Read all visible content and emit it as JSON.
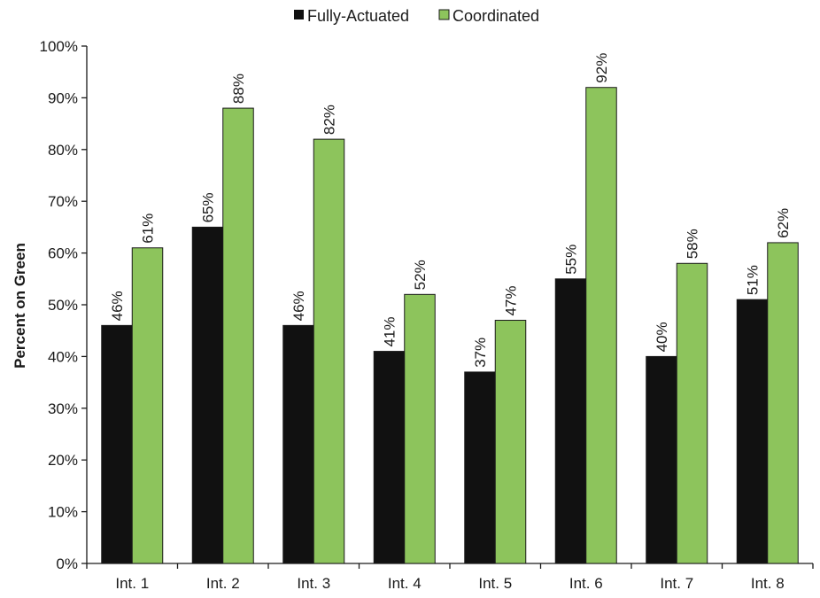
{
  "chart_data": {
    "type": "bar",
    "title": "",
    "xlabel": "",
    "ylabel": "Percent on Green",
    "categories": [
      "Int. 1",
      "Int. 2",
      "Int. 3",
      "Int. 4",
      "Int. 5",
      "Int. 6",
      "Int. 7",
      "Int. 8"
    ],
    "series": [
      {
        "name": "Fully-Actuated",
        "color": "#111111",
        "values": [
          46,
          65,
          46,
          41,
          37,
          55,
          40,
          51
        ],
        "labels": [
          "46%",
          "65%",
          "46%",
          "41%",
          "37%",
          "55%",
          "40%",
          "51%"
        ]
      },
      {
        "name": "Coordinated",
        "color": "#8dc45c",
        "values": [
          61,
          88,
          82,
          52,
          47,
          92,
          58,
          62
        ],
        "labels": [
          "61%",
          "88%",
          "82%",
          "52%",
          "47%",
          "92%",
          "58%",
          "62%"
        ]
      }
    ],
    "ylim": [
      0,
      100
    ],
    "yticks": [
      0,
      10,
      20,
      30,
      40,
      50,
      60,
      70,
      80,
      90,
      100
    ],
    "ytick_labels": [
      "0%",
      "10%",
      "20%",
      "30%",
      "40%",
      "50%",
      "60%",
      "70%",
      "80%",
      "90%",
      "100%"
    ],
    "grid": false,
    "legend_position": "top-center"
  }
}
